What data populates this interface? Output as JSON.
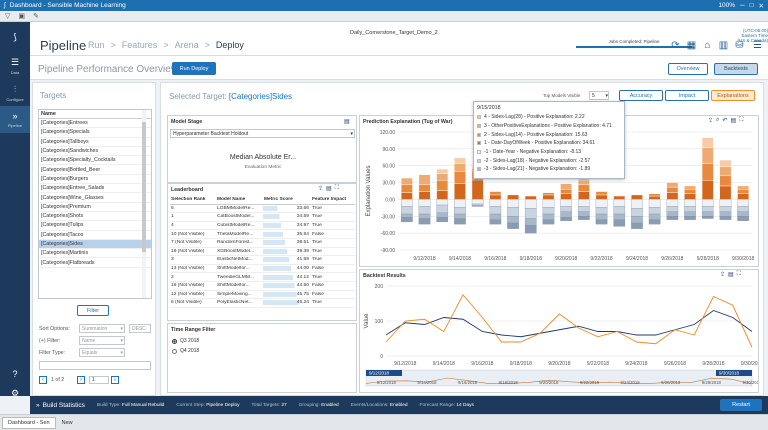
{
  "titlebar": {
    "title": "Dashboard - Sensible Machine Learning",
    "zoom": "100%"
  },
  "header": {
    "page_title": "Pipeline",
    "crumbs": [
      "Run",
      "Features",
      "Arena",
      "Deploy"
    ],
    "crumb_separator": ">",
    "dataset": "Daily_Cornerstone_Target_Demo_2",
    "job_status": "Jobs Completed: Pipeline",
    "time_info": "(UTC-05:00) Eastern Time (US & Canada)"
  },
  "subheader": {
    "title": "Pipeline Performance Overview:",
    "run_deploy": "Run Deploy",
    "overview": "Overview",
    "backtests": "Backtests"
  },
  "targets": {
    "title": "Targets",
    "column": "Name",
    "items": [
      "[Categories]Entrees",
      "[Categories]Specials",
      "[Categories]Tallboys",
      "[Categories]Sandwiches",
      "[Categories]Specialty_Cocktails",
      "[Categories]Bottled_Beer",
      "[Categories]Burgers",
      "[Categories]Entree_Salads",
      "[Categories]Wine_Glasses",
      "[Categories]Premium",
      "[Categories]Shots",
      "[Categories]Tulips",
      "[Categories]Tacos",
      "[Categories]Sides",
      "[Categories]Martinis",
      "[Categories]Flatbreads"
    ],
    "selected_index": 13,
    "filter_button": "Filter",
    "sort_label": "Sort Options:",
    "sort_value": "Summation",
    "sort_dir": "DESC",
    "filter_label": "(+) Filter:",
    "filter_value": "Name",
    "filter_type_label": "Filter Type:",
    "filter_type_value": "Equals",
    "page_of": "1 of 2",
    "page_input": "1"
  },
  "main": {
    "selected_label": "Selected Target:",
    "selected_value": "[Categories]Sides",
    "top_models_label": "Top Models Visible",
    "top_models_value": "5",
    "accuracy": "Accuracy",
    "impact": "Impact",
    "explanations": "Explanations"
  },
  "model_stage": {
    "title": "Model Stage",
    "value": "Hyperparameter Backtest Holdout",
    "metric_title": "Median Absolute Er...",
    "metric_sub": "Evaluation Metric"
  },
  "leaderboard": {
    "title": "Leaderboard",
    "headers": [
      "Selection Rank",
      "Model Name",
      "Metric Score",
      "Feature Impact"
    ],
    "rows": [
      [
        "5",
        "LGBMModelRe...",
        "33.66",
        "True"
      ],
      [
        "1",
        "CatBoostModel...",
        "34.59",
        "True"
      ],
      [
        "4",
        "CubistModelRe...",
        "34.97",
        "True"
      ],
      [
        "10 (Not Visible)",
        "ThetaModelRe...",
        "35.84",
        "False"
      ],
      [
        "7 (Not Visible)",
        "RandomForest...",
        "38.51",
        "True"
      ],
      [
        "19 (Not Visible)",
        "XGBoostModel...",
        "39.39",
        "True"
      ],
      [
        "3",
        "ElasticNetMod...",
        "41.59",
        "True"
      ],
      [
        "13 (Not Visible)",
        "ShiftModelfor...",
        "44.00",
        "False"
      ],
      [
        "2",
        "TweedieGLMM...",
        "44.12",
        "True"
      ],
      [
        "16 (Not Visible)",
        "ShiftModelfor...",
        "44.50",
        "False"
      ],
      [
        "12 (Not Visible)",
        "SimpleMoving...",
        "45.75",
        "False"
      ],
      [
        "6 (Not Visible)",
        "PolyElasticNet...",
        "46.24",
        "True"
      ]
    ]
  },
  "time_range": {
    "title": "Time Range Filter",
    "options": [
      "Q3 2018",
      "Q4 2018"
    ],
    "selected": 0
  },
  "prediction": {
    "title": "Prediction Explanation (Tug of War)",
    "ylabel": "Explanation Values"
  },
  "backtest": {
    "title": "Backtest Results",
    "ylabel": "Value",
    "range_start": "9/12/2018",
    "range_end": "9/30/2018"
  },
  "tooltip": {
    "date": "9/15/2018",
    "items": [
      {
        "text": "4 - Sides-Lag(28) - Positive Explanation: 2.22",
        "color": "#f2c6a4"
      },
      {
        "text": "3 - OtherPositiveExplanations - Positive Explanation: 4.71",
        "color": "#f0a970"
      },
      {
        "text": "2 - Sides-Lag(14) - Positive Explanation: 15.63",
        "color": "#e8893d"
      },
      {
        "text": "1 - Date-DayOfWeek - Positive Explanation: 34.61",
        "color": "#d4661c"
      },
      {
        "text": "-1 - Date-Year - Negative Explanation: -8.13",
        "color": "#eef2f6"
      },
      {
        "text": "-2 - Sides-Lag(18) - Negative Explanation: -2.57",
        "color": "#c9d4e0"
      },
      {
        "text": "-3 - Sides-Lag(21) - Negative Explanation: -1.89",
        "color": "#a9b8c9"
      }
    ]
  },
  "statusbar": {
    "title": "Build Statistics",
    "build_type_label": "Build Type:",
    "build_type": "Full Manual Rebuild",
    "current_step_label": "Current Step:",
    "current_step": "Pipeline Deploy",
    "total_targets_label": "Total Targets:",
    "total_targets": "27",
    "grouping_label": "Grouping:",
    "grouping": "Enabled",
    "events_label": "Events/Locations:",
    "events": "Enabled",
    "forecast_label": "Forecast Range:",
    "forecast": "14 Days",
    "restart": "Restart"
  },
  "taskbar": {
    "tab1": "Dashboard - Sen",
    "tab2": "New"
  },
  "nav": {
    "items": [
      "Data",
      "Configure",
      "Pipeline"
    ]
  },
  "chart_data": [
    {
      "type": "bar",
      "title": "Prediction Explanation (Tug of War)",
      "ylabel": "Explanation Values",
      "ylim": [
        -90,
        120
      ],
      "yticks": [
        "120.00",
        "90.00",
        "60.00",
        "30.00",
        "0.00",
        "-30.00",
        "-60.00",
        "-90.00"
      ],
      "xticks": [
        "9/12/2018",
        "9/14/2018",
        "9/16/2018",
        "9/18/2018",
        "9/20/2018",
        "9/22/2018",
        "9/24/2018",
        "9/26/2018",
        "9/28/2018",
        "9/30/2018"
      ],
      "x_range": [
        "9/11/2018",
        "9/30/2018"
      ],
      "stacked": true,
      "bars": [
        {
          "date": "9/11/2018",
          "pos": [
            12,
            14,
            12
          ],
          "neg": [
            -12,
            -14,
            -6,
            -8
          ]
        },
        {
          "date": "9/12/2018",
          "pos": [
            14,
            12,
            18
          ],
          "neg": [
            -12,
            -14,
            -8,
            -10
          ]
        },
        {
          "date": "9/13/2018",
          "pos": [
            16,
            18,
            12,
            8
          ],
          "neg": [
            -10,
            -14,
            -8,
            -8
          ]
        },
        {
          "date": "9/14/2018",
          "pos": [
            28,
            22,
            14,
            10
          ],
          "neg": [
            -14,
            -12,
            -8,
            -10
          ]
        },
        {
          "date": "9/15/2018",
          "pos": [
            34.61,
            15.63,
            4.71,
            2.22
          ],
          "neg": [
            -8.13,
            -2.57,
            -1.89
          ]
        },
        {
          "date": "9/16/2018",
          "pos": [
            8,
            6
          ],
          "neg": [
            -12,
            -14,
            -10,
            -8
          ]
        },
        {
          "date": "9/17/2018",
          "pos": [
            8
          ],
          "neg": [
            -14,
            -16,
            -12,
            -10
          ]
        },
        {
          "date": "9/18/2018",
          "pos": [
            6
          ],
          "neg": [
            -16,
            -18,
            -12,
            -14
          ]
        },
        {
          "date": "9/19/2018",
          "pos": [
            8,
            4
          ],
          "neg": [
            -14,
            -12,
            -10,
            -8
          ]
        },
        {
          "date": "9/20/2018",
          "pos": [
            10,
            8,
            10
          ],
          "neg": [
            -12,
            -10,
            -10,
            -6
          ]
        },
        {
          "date": "9/21/2018",
          "pos": [
            14,
            12,
            8,
            6
          ],
          "neg": [
            -12,
            -10,
            -8,
            -6
          ]
        },
        {
          "date": "9/22/2018",
          "pos": [
            8,
            6
          ],
          "neg": [
            -14,
            -12,
            -10,
            -8
          ]
        },
        {
          "date": "9/23/2018",
          "pos": [
            6
          ],
          "neg": [
            -12,
            -14,
            -10,
            -12
          ]
        },
        {
          "date": "9/24/2018",
          "pos": [
            8
          ],
          "neg": [
            -16,
            -14,
            -12,
            -10
          ]
        },
        {
          "date": "9/25/2018",
          "pos": [
            6,
            4
          ],
          "neg": [
            -14,
            -12,
            -10,
            -8
          ]
        },
        {
          "date": "9/26/2018",
          "pos": [
            12,
            10,
            8
          ],
          "neg": [
            -12,
            -10,
            -8,
            -6
          ]
        },
        {
          "date": "9/27/2018",
          "pos": [
            10,
            8,
            6
          ],
          "neg": [
            -12,
            -10,
            -8,
            -6
          ]
        },
        {
          "date": "9/28/2018",
          "pos": [
            34,
            30,
            28,
            18
          ],
          "neg": [
            -12,
            -10,
            -8,
            -4
          ]
        },
        {
          "date": "9/29/2018",
          "pos": [
            24,
            18,
            16,
            12
          ],
          "neg": [
            -12,
            -10,
            -8,
            -6
          ]
        },
        {
          "date": "9/30/2018",
          "pos": [
            10,
            8,
            6
          ],
          "neg": [
            -12,
            -10,
            -8,
            -8
          ]
        }
      ]
    },
    {
      "type": "line",
      "title": "Backtest Results",
      "ylabel": "Value",
      "ylim": [
        0,
        200
      ],
      "yticks": [
        "200",
        "100",
        "0"
      ],
      "xticks": [
        "9/12/2018",
        "9/14/2018",
        "9/16/2018",
        "9/18/2018",
        "9/20/2018",
        "9/22/2018",
        "9/24/2018",
        "9/26/2018",
        "9/28/2018",
        "9/30/2018"
      ],
      "x": [
        "9/11",
        "9/12",
        "9/13",
        "9/14",
        "9/15",
        "9/16",
        "9/17",
        "9/18",
        "9/19",
        "9/20",
        "9/21",
        "9/22",
        "9/23",
        "9/24",
        "9/25",
        "9/26",
        "9/27",
        "9/28",
        "9/29",
        "9/30"
      ],
      "series": [
        {
          "color": "#1e3a6e",
          "values": [
            60,
            95,
            90,
            110,
            105,
            70,
            60,
            55,
            65,
            75,
            85,
            70,
            70,
            60,
            60,
            75,
            90,
            130,
            110,
            70
          ]
        },
        {
          "color": "#f08a24",
          "values": [
            40,
            100,
            105,
            70,
            175,
            110,
            40,
            40,
            65,
            120,
            80,
            55,
            70,
            40,
            35,
            75,
            60,
            170,
            145,
            25
          ]
        }
      ]
    }
  ]
}
